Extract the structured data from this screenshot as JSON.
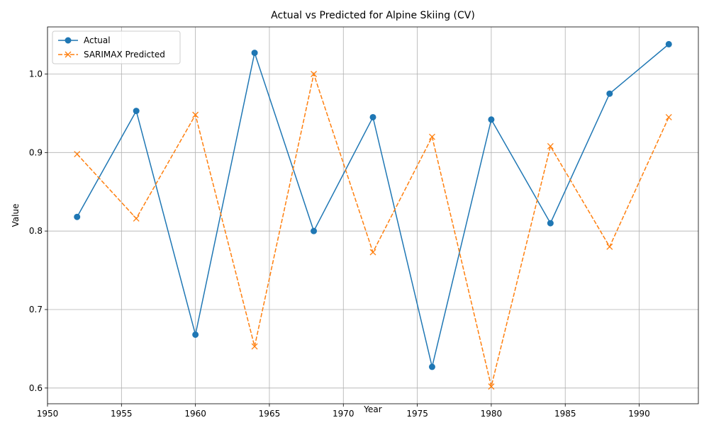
{
  "chart_data": {
    "type": "line",
    "title": "Actual vs Predicted for Alpine Skiing (CV)",
    "xlabel": "Year",
    "ylabel": "Value",
    "xlim": [
      1950,
      1994
    ],
    "ylim": [
      0.58,
      1.06
    ],
    "xticks": [
      1950,
      1955,
      1960,
      1965,
      1970,
      1975,
      1980,
      1985,
      1990
    ],
    "yticks": [
      0.6,
      0.7,
      0.8,
      0.9,
      1.0
    ],
    "grid": true,
    "legend_position": "top-left",
    "x": [
      1952,
      1956,
      1960,
      1964,
      1968,
      1972,
      1976,
      1980,
      1984,
      1988,
      1992
    ],
    "series": [
      {
        "name": "Actual",
        "color": "#1f77b4",
        "marker": "circle",
        "linestyle": "solid",
        "values": [
          0.818,
          0.953,
          0.668,
          1.027,
          0.8,
          0.945,
          0.627,
          0.942,
          0.81,
          0.975,
          1.038
        ]
      },
      {
        "name": "SARIMAX Predicted",
        "color": "#ff7f0e",
        "marker": "x",
        "linestyle": "dashed",
        "values": [
          0.898,
          0.816,
          0.948,
          0.653,
          1.0,
          0.773,
          0.92,
          0.602,
          0.908,
          0.78,
          0.945
        ]
      }
    ]
  }
}
